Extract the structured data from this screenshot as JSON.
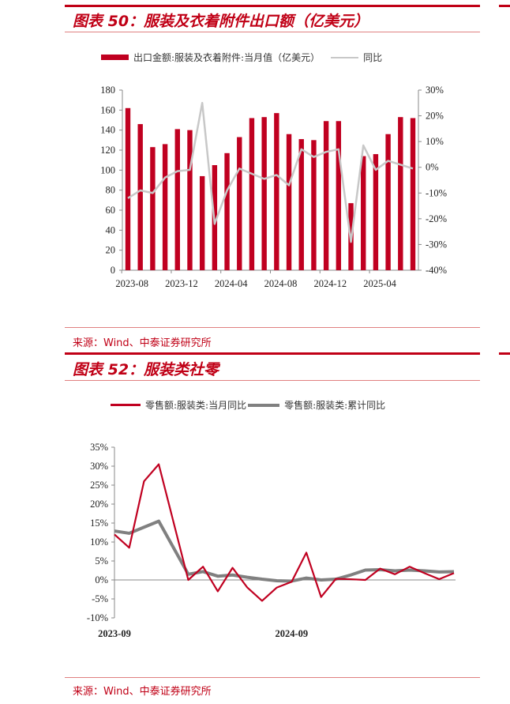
{
  "top": {
    "title": "图表 50：服装及衣着附件出口额（亿美元）",
    "source": "来源：Wind、中泰证券研究所"
  },
  "bottom": {
    "title": "图表 52：服装类社零",
    "source": "来源：Wind、中泰证券研究所"
  },
  "colors": {
    "red": "#c00020",
    "light_gray": "#c8c8c8",
    "dark_gray": "#808080",
    "accent": "#c00016"
  },
  "chart_data": [
    {
      "type": "bar+line",
      "title": "",
      "x": [
        "2023-08",
        "2023-09",
        "2023-10",
        "2023-11",
        "2023-12",
        "2024-01",
        "2024-02",
        "2024-03",
        "2024-04",
        "2024-05",
        "2024-06",
        "2024-07",
        "2024-08",
        "2024-09",
        "2024-10",
        "2024-11",
        "2024-12",
        "2025-01",
        "2025-02",
        "2025-03",
        "2025-04",
        "2025-05",
        "2025-06",
        "2025-07"
      ],
      "x_tick_labels": [
        "2023-08",
        "2023-12",
        "2024-04",
        "2024-08",
        "2024-12",
        "2025-04"
      ],
      "series": [
        {
          "name": "出口金额:服装及衣着附件:当月值（亿美元）",
          "type": "bar",
          "axis": "left",
          "values": [
            162,
            146,
            123,
            126,
            141,
            140,
            94,
            105,
            117,
            133,
            152,
            153,
            157,
            136,
            131,
            130,
            149,
            149,
            67,
            114,
            116,
            136,
            153,
            152
          ]
        },
        {
          "name": "同比",
          "type": "line",
          "axis": "right",
          "values": [
            -12,
            -9,
            -10,
            -4,
            -1.5,
            -1,
            25,
            -22,
            -9,
            -0.5,
            -2.5,
            -4.5,
            -3,
            -7,
            7,
            4,
            6,
            7,
            -29,
            8.5,
            -1,
            2.5,
            1,
            -0.5
          ]
        }
      ],
      "ylim_left": [
        0,
        180
      ],
      "yticks_left": [
        "0",
        "20",
        "40",
        "60",
        "80",
        "100",
        "120",
        "140",
        "160",
        "180"
      ],
      "ylim_right": [
        -40,
        30
      ],
      "yticks_right": [
        "-40%",
        "-30%",
        "-20%",
        "-10%",
        "0%",
        "10%",
        "20%",
        "30%"
      ],
      "legend": "top",
      "grid": false
    },
    {
      "type": "line",
      "title": "",
      "x": [
        "2023-09",
        "2023-10",
        "2023-11",
        "2023-12",
        "2024-01",
        "2024-02",
        "2024-03",
        "2024-04",
        "2024-05",
        "2024-06",
        "2024-07",
        "2024-08",
        "2024-09",
        "2024-10",
        "2024-11",
        "2024-12",
        "2025-01",
        "2025-02",
        "2025-03",
        "2025-04",
        "2025-05",
        "2025-06",
        "2025-07",
        "2025-08"
      ],
      "x_tick_labels": [
        "2023-09",
        "2024-09"
      ],
      "series": [
        {
          "name": "零售额:服装类:当月同比",
          "values": [
            12,
            8.5,
            26,
            30.5,
            null,
            0,
            3.5,
            -3,
            3.2,
            -2,
            -5.5,
            -2,
            -0.5,
            7.2,
            -4.5,
            0.3,
            0.2,
            0,
            3,
            1.5,
            3.5,
            1.8,
            0.2,
            1.8
          ]
        },
        {
          "name": "零售额:服装类:累计同比",
          "values": [
            12.9,
            12.3,
            13.9,
            15.5,
            null,
            1.5,
            2.2,
            1.0,
            1.3,
            0.7,
            0.2,
            -0.2,
            -0.3,
            0.5,
            0,
            0.2,
            1.3,
            2.6,
            2.7,
            2.4,
            2.6,
            2.4,
            2.1,
            2.2
          ]
        }
      ],
      "ylim": [
        -10,
        35
      ],
      "yticks": [
        "-10%",
        "-5%",
        "0%",
        "5%",
        "10%",
        "15%",
        "20%",
        "25%",
        "30%",
        "35%"
      ],
      "legend": "top",
      "grid": false
    }
  ]
}
